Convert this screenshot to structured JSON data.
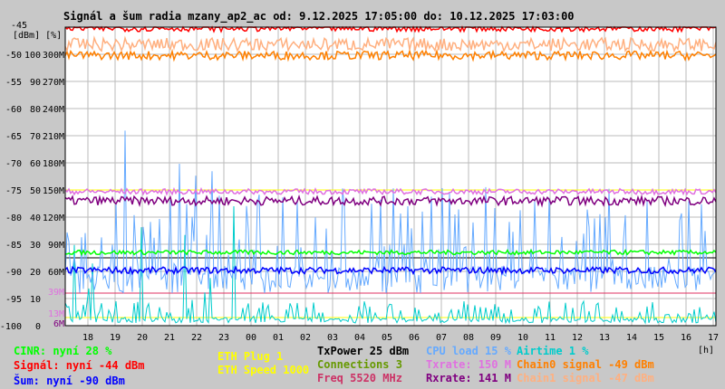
{
  "chart_data": {
    "type": "line",
    "title": "Signál a šum radia mzany_ap2_ac od: 9.12.2025 17:05:00 do: 10.12.2025 17:03:00",
    "y_units": "[dBm] [%]",
    "ylim": [
      -100,
      -45
    ],
    "y_ticks_dbm": [
      "-45",
      "-50",
      "-55",
      "-60",
      "-65",
      "-70",
      "-75",
      "-80",
      "-85",
      "-90",
      "-95",
      "-100"
    ],
    "y_ticks_pct": [
      "",
      "100",
      "90",
      "80",
      "70",
      "60",
      "50",
      "40",
      "30",
      "20",
      "10",
      "0"
    ],
    "y_ticks_rate": [
      "",
      "300M",
      "270M",
      "240M",
      "210M",
      "180M",
      "150M",
      "120M",
      "90M",
      "60M",
      "",
      ""
    ],
    "extra_rate_labels": [
      {
        "label": "39M",
        "color": "#e070e0",
        "dbm": -94.0
      },
      {
        "label": "13M",
        "color": "#e070e0",
        "dbm": -98.3
      },
      {
        "label": "6M",
        "color": "#800080",
        "dbm": -99.5
      }
    ],
    "x_ticks": [
      "18",
      "19",
      "20",
      "21",
      "22",
      "23",
      "00",
      "01",
      "02",
      "03",
      "04",
      "05",
      "06",
      "07",
      "08",
      "09",
      "10",
      "11",
      "12",
      "13",
      "14",
      "15",
      "16",
      "17"
    ],
    "x_unit": "[h]",
    "grid": true,
    "series": [
      {
        "name": "Signál",
        "color": "#ff0000",
        "base": -45.2,
        "noise": 0.6
      },
      {
        "name": "Chain1 signal",
        "color": "#ffb080",
        "base": -48.2,
        "noise": 1.2
      },
      {
        "name": "Chain0 signal",
        "color": "#ff8000",
        "base": -50.2,
        "noise": 0.8
      },
      {
        "name": "Txrate",
        "color": "#e070e0",
        "base": -75.3,
        "noise": 0.5
      },
      {
        "name": "Rxrate",
        "color": "#800080",
        "base": -77.0,
        "noise": 0.8
      },
      {
        "name": "CINR",
        "color": "#00ff00",
        "base": -86.5,
        "noise": 0.4
      },
      {
        "name": "Šum",
        "color": "#0000ff",
        "base": -89.8,
        "noise": 0.6
      },
      {
        "name": "CPU load",
        "color": "#66aaff",
        "base": -94,
        "noise": 5,
        "spiky": true
      },
      {
        "name": "Airtime",
        "color": "#00cccc",
        "base": -99.5,
        "noise": 1,
        "spiky": true
      }
    ],
    "hlines": [
      {
        "color": "#000000",
        "dbm": -87.5
      },
      {
        "color": "#e03060",
        "dbm": -94.0
      },
      {
        "color": "#ffff00",
        "dbm": -98.5
      },
      {
        "color": "#ffff00",
        "dbm": -75.0
      }
    ]
  },
  "legend": {
    "cinr": "CINR: nyní 28 %",
    "signal": "Signál: nyní -44 dBm",
    "noise": "Šum: nyní -90 dBm",
    "eth_plug": "ETH Plug 1",
    "eth_speed": "ETH Speed 1000",
    "txpower": "TxPower 25 dBm",
    "connections": "Connections 3",
    "freq": "Freq 5520 MHz",
    "cpu": "CPU load 15 %",
    "txrate": "Txrate: 150 M",
    "rxrate": "Rxrate: 141 M",
    "airtime": "Airtime 1 %",
    "chain0": "Chain0 signal -49 dBm",
    "chain1": "Chain1 signal -47 dBm"
  }
}
